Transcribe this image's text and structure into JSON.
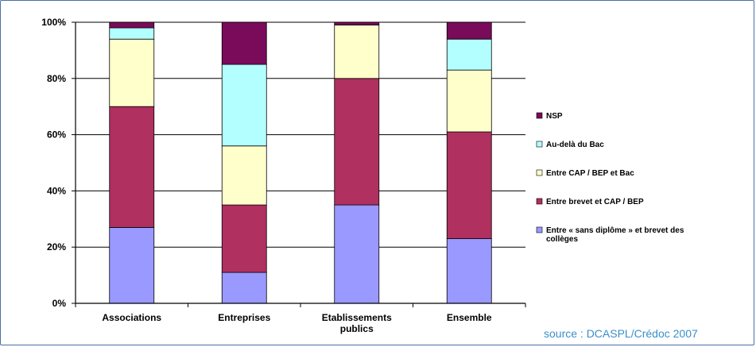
{
  "chart_data": {
    "type": "bar",
    "stacked": true,
    "categories": [
      [
        "Associations"
      ],
      [
        "Entreprises"
      ],
      [
        "Etablissements",
        "publics"
      ],
      [
        "Ensemble"
      ]
    ],
    "series": [
      {
        "name": "Entre « sans diplôme » et brevet des collèges",
        "values": [
          27,
          11,
          35,
          23
        ],
        "color": "#9999ff"
      },
      {
        "name": "Entre brevet et CAP / BEP",
        "values": [
          43,
          24,
          45,
          38
        ],
        "color": "#b03060"
      },
      {
        "name": "Entre CAP / BEP et Bac",
        "values": [
          24,
          21,
          19,
          22
        ],
        "color": "#ffffcc"
      },
      {
        "name": "Au-delà du Bac",
        "values": [
          4,
          29,
          0,
          11
        ],
        "color": "#b3ffff"
      },
      {
        "name": "NSP",
        "values": [
          2,
          15,
          1,
          6
        ],
        "color": "#7a0a5a"
      }
    ],
    "legend_order": [
      4,
      3,
      2,
      1,
      0
    ],
    "legend_labels": [
      [
        "NSP"
      ],
      [
        "Au-delà du Bac"
      ],
      [
        "Entre CAP / BEP et Bac"
      ],
      [
        "Entre brevet et CAP / BEP"
      ],
      [
        "Entre « sans diplôme » et brevet des",
        "collèges"
      ]
    ],
    "y_ticks": [
      "0%",
      "20%",
      "40%",
      "60%",
      "80%",
      "100%"
    ],
    "ylim": [
      0,
      100
    ],
    "grid": true,
    "legend_position": "right",
    "source": "source : DCASPL/Crédoc 2007"
  }
}
